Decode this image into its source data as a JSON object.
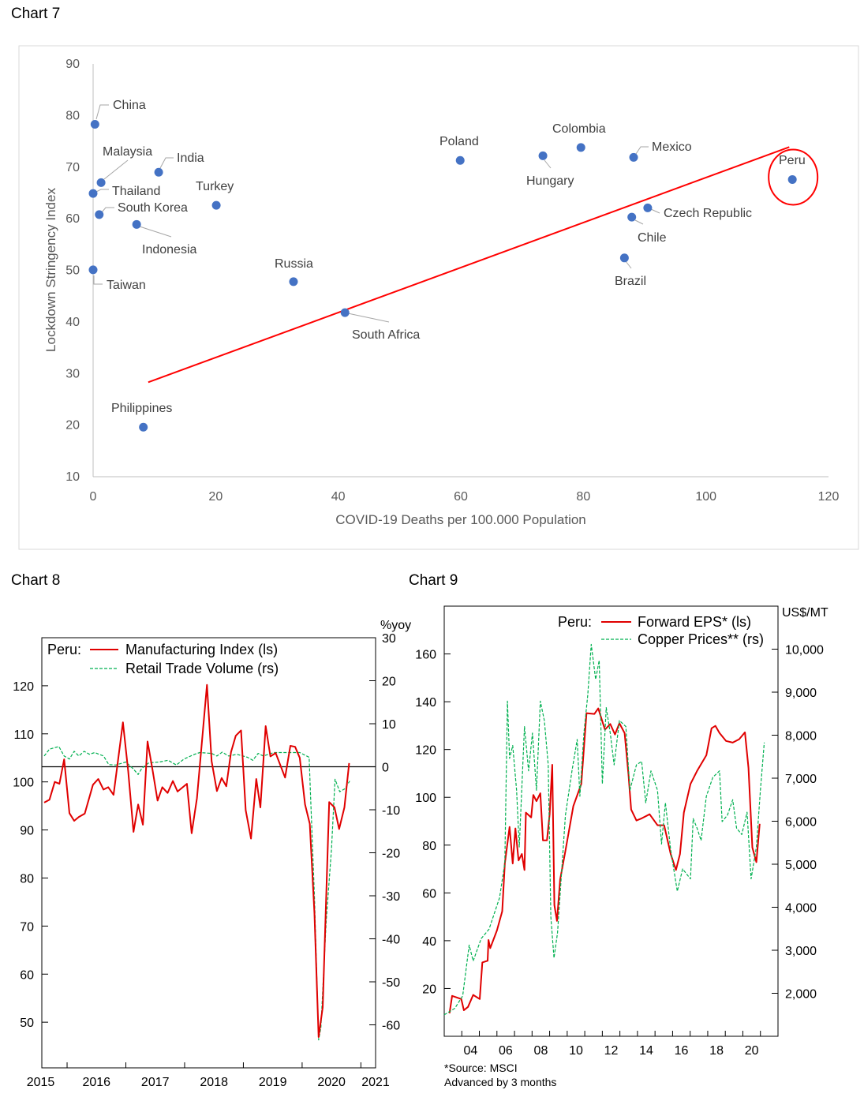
{
  "chart_data": [
    {
      "type": "scatter",
      "title": "Chart 7",
      "xlabel": "COVID-19 Deaths per 100.000 Population",
      "ylabel": "Lockdown Stringency Index",
      "xlim": [
        0,
        120
      ],
      "ylim": [
        10,
        90
      ],
      "xticks": [
        0,
        20,
        40,
        60,
        80,
        100,
        120
      ],
      "yticks": [
        10,
        20,
        30,
        40,
        50,
        60,
        70,
        80,
        90
      ],
      "grid": false,
      "point_color": "#4472C4",
      "trend_color": "#FF0000",
      "highlight": "Peru",
      "points": [
        {
          "label": "China",
          "x": 0.3,
          "y": 78.3
        },
        {
          "label": "Malaysia",
          "x": 1.3,
          "y": 67.0
        },
        {
          "label": "India",
          "x": 10.7,
          "y": 69.0
        },
        {
          "label": "Thailand",
          "x": 0.0,
          "y": 64.9
        },
        {
          "label": "South Korea",
          "x": 1.0,
          "y": 60.8
        },
        {
          "label": "Indonesia",
          "x": 7.1,
          "y": 58.9
        },
        {
          "label": "Turkey",
          "x": 20.1,
          "y": 62.6
        },
        {
          "label": "Taiwan",
          "x": 0.0,
          "y": 50.1
        },
        {
          "label": "Russia",
          "x": 32.7,
          "y": 47.8
        },
        {
          "label": "South Africa",
          "x": 41.1,
          "y": 41.8
        },
        {
          "label": "Philippines",
          "x": 8.2,
          "y": 19.6
        },
        {
          "label": "Poland",
          "x": 59.9,
          "y": 71.3
        },
        {
          "label": "Hungary",
          "x": 73.4,
          "y": 72.2
        },
        {
          "label": "Colombia",
          "x": 79.6,
          "y": 73.8
        },
        {
          "label": "Mexico",
          "x": 88.2,
          "y": 71.9
        },
        {
          "label": "Peru",
          "x": 114.1,
          "y": 67.6
        },
        {
          "label": "Czech Republic",
          "x": 90.5,
          "y": 62.1
        },
        {
          "label": "Chile",
          "x": 87.9,
          "y": 60.3
        },
        {
          "label": "Brazil",
          "x": 86.7,
          "y": 52.4
        }
      ],
      "trendline": [
        [
          9.0,
          28.3
        ],
        [
          113.6,
          73.9
        ]
      ]
    },
    {
      "type": "line",
      "title": "Chart 8",
      "legend_prefix": "Peru:",
      "legend_placement": "top-left",
      "xlim": [
        2015.57,
        2021.25
      ],
      "xticks": [
        2016,
        2017,
        2018,
        2019,
        2020,
        2021
      ],
      "xticklabels": [
        {
          "label": "2015",
          "x": 2015.55
        },
        {
          "label": "2016",
          "x": 2016.5
        },
        {
          "label": "2017",
          "x": 2017.5
        },
        {
          "label": "2018",
          "x": 2018.5
        },
        {
          "label": "2019",
          "x": 2019.5
        },
        {
          "label": "2020",
          "x": 2020.5
        },
        {
          "label": "2021",
          "x": 2021.25
        }
      ],
      "ylim_left": [
        40.5,
        130
      ],
      "yticks_left": [
        50,
        60,
        70,
        80,
        90,
        100,
        110,
        120
      ],
      "ylim_right": [
        -70,
        30
      ],
      "yticks_right": [
        -60,
        -50,
        -40,
        -30,
        -20,
        -10,
        0,
        10,
        20,
        30
      ],
      "right_unit": "%yoy",
      "reference_line_right": 0,
      "series": [
        {
          "name": "Manufacturing Index (ls)",
          "axis": "left",
          "color": "#E00000",
          "style": "solid",
          "x": [
            2015.61,
            2015.7,
            2015.79,
            2015.87,
            2015.95,
            2016.04,
            2016.12,
            2016.2,
            2016.3,
            2016.44,
            2016.53,
            2016.62,
            2016.7,
            2016.79,
            2016.95,
            2017.04,
            2017.13,
            2017.21,
            2017.29,
            2017.37,
            2017.45,
            2017.54,
            2017.62,
            2017.71,
            2017.8,
            2017.88,
            2018.04,
            2018.12,
            2018.21,
            2018.38,
            2018.46,
            2018.55,
            2018.63,
            2018.71,
            2018.79,
            2018.87,
            2018.96,
            2019.04,
            2019.13,
            2019.22,
            2019.29,
            2019.38,
            2019.46,
            2019.55,
            2019.71,
            2019.8,
            2019.88,
            2019.96,
            2020.05,
            2020.13,
            2020.21,
            2020.28,
            2020.35,
            2020.46,
            2020.55,
            2020.63,
            2020.72,
            2020.8
          ],
          "y": [
            95.7,
            96.3,
            100,
            99.6,
            104.7,
            93.5,
            91.9,
            92.7,
            93.4,
            99.4,
            100.6,
            98.4,
            98.9,
            97.3,
            112.4,
            102.2,
            89.6,
            95.3,
            91.1,
            108.4,
            102.8,
            96.1,
            98.9,
            97.7,
            100.2,
            98.0,
            99.6,
            89.3,
            96.6,
            120.2,
            104.3,
            98.1,
            100.8,
            99.1,
            106.2,
            109.6,
            110.7,
            94.1,
            88.2,
            100.6,
            94.7,
            111.6,
            105.3,
            106.0,
            100.9,
            107.5,
            107.3,
            105.0,
            95.3,
            91.3,
            72.7,
            46.9,
            53.1,
            95.8,
            94.7,
            90.2,
            94.7,
            103.9
          ]
        },
        {
          "name": "Retail Trade Volume (rs)",
          "axis": "right",
          "color": "#00B050",
          "style": "dashed",
          "x": [
            2015.61,
            2015.7,
            2015.86,
            2015.95,
            2016.04,
            2016.12,
            2016.2,
            2016.29,
            2016.38,
            2016.47,
            2016.62,
            2016.71,
            2016.83,
            2017.0,
            2017.12,
            2017.21,
            2017.27,
            2017.39,
            2017.57,
            2017.72,
            2017.86,
            2017.99,
            2018.17,
            2018.26,
            2018.46,
            2018.55,
            2018.64,
            2018.75,
            2018.89,
            2019.07,
            2019.16,
            2019.25,
            2019.34,
            2019.52,
            2019.7,
            2019.96,
            2020.12,
            2020.14,
            2020.21,
            2020.28,
            2020.32,
            2020.41,
            2020.5,
            2020.56,
            2020.64,
            2020.73,
            2020.81
          ],
          "y": [
            2.5,
            4.1,
            4.7,
            2.5,
            1.8,
            3.6,
            2.5,
            3.6,
            2.9,
            3.3,
            2.5,
            0.5,
            0.4,
            1.1,
            -0.4,
            -1.8,
            -0.4,
            0.9,
            1.1,
            1.5,
            0.4,
            1.8,
            2.9,
            3.3,
            3.1,
            2.5,
            3.4,
            2.5,
            2.9,
            2.2,
            1.5,
            3.1,
            2.5,
            3.3,
            3.3,
            3.3,
            2.2,
            -5.4,
            -30.1,
            -63.5,
            -60.6,
            -35.9,
            -19.2,
            -2.9,
            -5.8,
            -5.1,
            -3.3
          ]
        }
      ]
    },
    {
      "type": "line",
      "title": "Chart 9",
      "legend_prefix": "Peru:",
      "legend_placement": "top-right",
      "xlim": [
        2003,
        2022
      ],
      "xticks": [
        2004,
        2005,
        2006,
        2007,
        2008,
        2009,
        2010,
        2011,
        2012,
        2013,
        2014,
        2015,
        2016,
        2017,
        2018,
        2019,
        2020,
        2021
      ],
      "xticklabels": [
        {
          "label": "04",
          "x": 2004.5
        },
        {
          "label": "06",
          "x": 2006.5
        },
        {
          "label": "08",
          "x": 2008.5
        },
        {
          "label": "10",
          "x": 2010.5
        },
        {
          "label": "12",
          "x": 2012.5
        },
        {
          "label": "14",
          "x": 2014.5
        },
        {
          "label": "16",
          "x": 2016.5
        },
        {
          "label": "18",
          "x": 2018.5
        },
        {
          "label": "20",
          "x": 2020.5
        }
      ],
      "ylim_left": [
        0,
        180
      ],
      "yticks_left": [
        20,
        40,
        60,
        80,
        100,
        120,
        140,
        160
      ],
      "ylim_right": [
        1000,
        11000
      ],
      "yticks_right": [
        2000,
        3000,
        4000,
        5000,
        6000,
        7000,
        8000,
        9000,
        10000
      ],
      "yticklabels_right": [
        "2,000",
        "3,000",
        "4,000",
        "5,000",
        "6,000",
        "7,000",
        "8,000",
        "9,000",
        "10,000"
      ],
      "right_unit": "US$/MT",
      "notes": [
        "*Source: MSCI",
        "Advanced by 3 months"
      ],
      "series": [
        {
          "name": "Forward EPS* (ls)",
          "axis": "left",
          "color": "#E00000",
          "style": "solid",
          "x": [
            2003.3,
            2003.45,
            2003.97,
            2004.12,
            2004.35,
            2004.65,
            2005.02,
            2005.17,
            2005.47,
            2005.52,
            2005.62,
            2006.0,
            2006.3,
            2006.45,
            2006.72,
            2006.9,
            2007.05,
            2007.23,
            2007.42,
            2007.57,
            2007.65,
            2007.95,
            2008.07,
            2008.25,
            2008.47,
            2008.62,
            2008.85,
            2009.0,
            2009.15,
            2009.27,
            2009.42,
            2009.6,
            2009.9,
            2010.35,
            2010.8,
            2011.1,
            2011.55,
            2011.77,
            2012.15,
            2012.45,
            2012.72,
            2012.97,
            2013.27,
            2013.49,
            2013.64,
            2013.94,
            2014.24,
            2014.69,
            2015.14,
            2015.52,
            2015.89,
            2016.19,
            2016.42,
            2016.64,
            2017.02,
            2017.39,
            2017.92,
            2018.22,
            2018.44,
            2018.67,
            2019.04,
            2019.42,
            2019.79,
            2020.12,
            2020.32,
            2020.54,
            2020.77,
            2020.96
          ],
          "y": [
            9.6,
            16.9,
            15.6,
            10.9,
            12.3,
            17.3,
            15.6,
            30.9,
            31.6,
            40.3,
            36.9,
            44.3,
            52.3,
            72.3,
            87.6,
            72.3,
            87.0,
            73.6,
            76.3,
            69.6,
            93.6,
            91.6,
            101.0,
            98.4,
            101.7,
            82.0,
            82.0,
            92.9,
            113.6,
            54.9,
            48.3,
            65.6,
            77.6,
            96.3,
            105.6,
            135.2,
            134.9,
            137.2,
            128.3,
            130.7,
            126.3,
            131.0,
            126.9,
            109.6,
            94.9,
            90.3,
            91.2,
            92.9,
            88.3,
            88.3,
            76.3,
            69.6,
            76.3,
            93.6,
            105.6,
            111.0,
            117.6,
            128.9,
            129.9,
            126.9,
            123.6,
            122.9,
            124.3,
            127.2,
            112.3,
            79.0,
            72.9,
            88.9
          ]
        },
        {
          "name": "Copper Prices** (rs)",
          "axis": "right",
          "color": "#00B050",
          "style": "dashed",
          "x": [
            2003.0,
            2003.6,
            2004.05,
            2004.42,
            2004.65,
            2005.1,
            2005.55,
            2006.15,
            2006.45,
            2006.6,
            2006.72,
            2006.9,
            2007.12,
            2007.27,
            2007.57,
            2007.8,
            2008.02,
            2008.25,
            2008.47,
            2008.7,
            2008.92,
            2009.07,
            2009.25,
            2009.45,
            2009.9,
            2010.27,
            2010.57,
            2010.72,
            2010.95,
            2011.17,
            2011.37,
            2011.62,
            2011.82,
            2012.0,
            2012.22,
            2012.45,
            2012.67,
            2012.97,
            2013.34,
            2013.57,
            2013.94,
            2014.24,
            2014.47,
            2014.77,
            2015.14,
            2015.37,
            2015.59,
            2015.89,
            2016.27,
            2016.57,
            2017.02,
            2017.17,
            2017.39,
            2017.62,
            2017.92,
            2018.29,
            2018.67,
            2018.82,
            2019.12,
            2019.42,
            2019.64,
            2019.94,
            2020.24,
            2020.47,
            2020.77,
            2021.0,
            2021.22
          ],
          "y": [
            1500,
            1650,
            1940,
            3120,
            2750,
            3270,
            3490,
            4220,
            5030,
            8790,
            7460,
            7760,
            6720,
            5400,
            8200,
            7170,
            8050,
            6720,
            8790,
            8340,
            7310,
            3780,
            2820,
            3410,
            6140,
            7170,
            7900,
            6580,
            8050,
            8930,
            10110,
            9300,
            9740,
            6870,
            8640,
            8050,
            7310,
            8340,
            8200,
            6720,
            7310,
            7390,
            6430,
            7170,
            6720,
            5470,
            6430,
            5330,
            4370,
            4890,
            4660,
            6060,
            5840,
            5550,
            6580,
            7020,
            7170,
            5990,
            6140,
            6500,
            5840,
            5690,
            6210,
            4660,
            5400,
            6720,
            7830
          ]
        }
      ]
    }
  ]
}
